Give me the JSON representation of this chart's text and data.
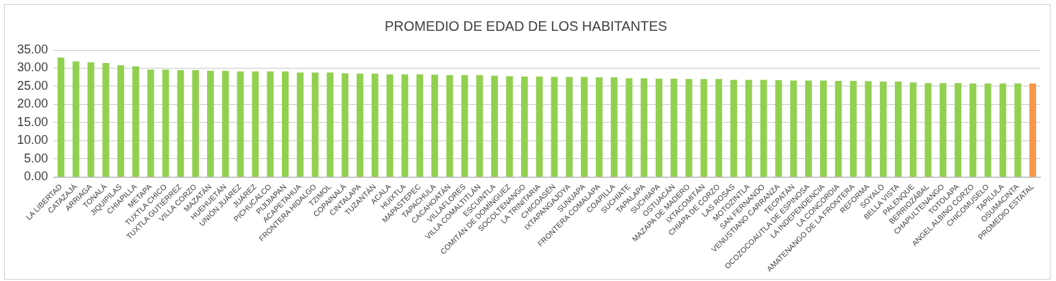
{
  "chart_data": {
    "type": "bar",
    "title": "PROMEDIO DE EDAD DE LOS HABITANTES",
    "categories": [
      "LA LIBERTAD",
      "CATAZAJÁ",
      "ARRIAGA",
      "TONALÁ",
      "JIQUIPILAS",
      "CHIAPILLA",
      "METAPA",
      "TUXTLA CHICO",
      "TUXTLA GUTIÉRREZ",
      "VILLA CORZO",
      "MAZATÁN",
      "HUEHUETÁN",
      "UNIÓN JUÁREZ",
      "JUÁREZ",
      "PICHUCALCO",
      "PIJIJIAPAN",
      "ACAPETAHUA",
      "FRONTERA HIDALGO",
      "TZIMOL",
      "COPAINALÁ",
      "CINTALAPA",
      "TUZANTÁN",
      "ACALA",
      "HUIXTLA",
      "MAPASTEPEC",
      "TAPACHULA",
      "CACAHOATÁN",
      "VILLAFLORES",
      "VILLA COMALTITLÁN",
      "ESCUINTLA",
      "COMITÁN DE DOMÍNGUEZ",
      "SOCOLTENANGO",
      "LA TRINITARIA",
      "CHICOASÉN",
      "IXTAPANGAJOYA",
      "SUNUAPA",
      "FRONTERA COMALAPA",
      "COAPILLA",
      "SUCHIATE",
      "TAPALAPA",
      "SUCHIAPA",
      "OSTUACÁN",
      "MAZAPA DE MADERO",
      "IXTACOMITÁN",
      "CHIAPA DE CORZO",
      "LAS ROSAS",
      "MOTOZINTLA",
      "SAN FERNANDO",
      "VENUSTIANO CARRANZA",
      "TECPATÁN",
      "OCOZOCOAUTLA DE ESPINOSA",
      "LA INDEPENDENCIA",
      "LA CONCORDIA",
      "AMATENANGO DE LA FRONTERA",
      "REFORMA",
      "SOYALÓ",
      "BELLA VISTA",
      "PALENQUE",
      "BERRIOZÁBAL",
      "CHAPULTENANGO",
      "TOTOLAPA",
      "ANGEL ALBINO CORZO",
      "CHICOMUSELO",
      "TAPILULA",
      "OSUMACINTA",
      "PROMEDIO ESTATAL"
    ],
    "values": [
      32.9,
      31.9,
      31.6,
      31.4,
      30.8,
      30.5,
      29.6,
      29.6,
      29.5,
      29.5,
      29.3,
      29.3,
      29.1,
      29.1,
      29.1,
      29.1,
      28.8,
      28.8,
      28.8,
      28.6,
      28.5,
      28.5,
      28.3,
      28.3,
      28.3,
      28.2,
      28.1,
      28.1,
      28.1,
      27.9,
      27.8,
      27.7,
      27.7,
      27.6,
      27.6,
      27.6,
      27.5,
      27.5,
      27.2,
      27.2,
      27.1,
      27.1,
      27.0,
      27.0,
      27.0,
      26.8,
      26.8,
      26.8,
      26.7,
      26.6,
      26.6,
      26.6,
      26.5,
      26.5,
      26.4,
      26.3,
      26.3,
      26.1,
      25.9,
      25.9,
      25.9,
      25.8,
      25.8,
      25.8,
      25.8,
      25.8
    ],
    "colors": [
      "#92d050",
      "#92d050",
      "#92d050",
      "#92d050",
      "#92d050",
      "#92d050",
      "#92d050",
      "#92d050",
      "#92d050",
      "#92d050",
      "#92d050",
      "#92d050",
      "#92d050",
      "#92d050",
      "#92d050",
      "#92d050",
      "#92d050",
      "#92d050",
      "#92d050",
      "#92d050",
      "#92d050",
      "#92d050",
      "#92d050",
      "#92d050",
      "#92d050",
      "#92d050",
      "#92d050",
      "#92d050",
      "#92d050",
      "#92d050",
      "#92d050",
      "#92d050",
      "#92d050",
      "#92d050",
      "#92d050",
      "#92d050",
      "#92d050",
      "#92d050",
      "#92d050",
      "#92d050",
      "#92d050",
      "#92d050",
      "#92d050",
      "#92d050",
      "#92d050",
      "#92d050",
      "#92d050",
      "#92d050",
      "#92d050",
      "#92d050",
      "#92d050",
      "#92d050",
      "#92d050",
      "#92d050",
      "#92d050",
      "#92d050",
      "#92d050",
      "#92d050",
      "#92d050",
      "#92d050",
      "#92d050",
      "#92d050",
      "#92d050",
      "#92d050",
      "#92d050",
      "#f79646"
    ],
    "ylim": [
      0,
      35
    ],
    "yticks": [
      {
        "value": 0,
        "label": "0.00"
      },
      {
        "value": 5,
        "label": "5.00"
      },
      {
        "value": 10,
        "label": "10.00"
      },
      {
        "value": 15,
        "label": "15.00"
      },
      {
        "value": 20,
        "label": "20.00"
      },
      {
        "value": 25,
        "label": "25.00"
      },
      {
        "value": 30,
        "label": "30.00"
      },
      {
        "value": 35,
        "label": "35.00"
      }
    ],
    "grid": "y",
    "legend": false
  }
}
